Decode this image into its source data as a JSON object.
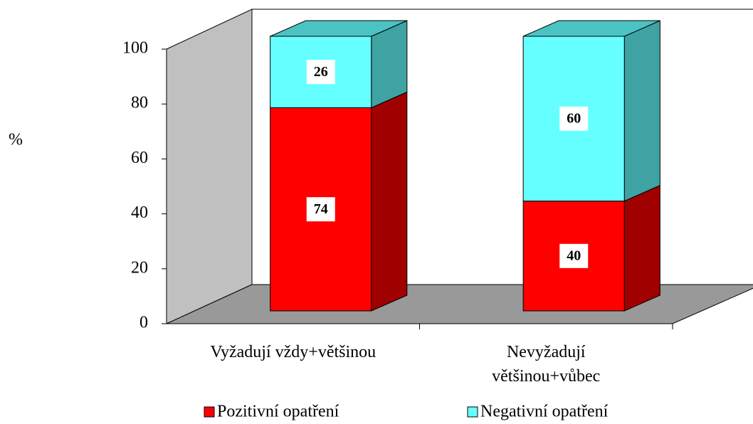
{
  "chart_data": {
    "type": "bar3d_stacked",
    "y_label": "%",
    "categories": [
      "Vyžadují vždy+většinou",
      "Nevyžadují většinou+vůbec"
    ],
    "series": [
      {
        "name": "Pozitivní opatření",
        "color": "#ff0000",
        "side_color": "#a00000",
        "values": [
          74,
          40
        ]
      },
      {
        "name": "Negativní opatření",
        "color": "#66ffff",
        "side_color": "#3fa3a3",
        "values": [
          26,
          60
        ]
      }
    ],
    "ylim": [
      0,
      100
    ],
    "yticks": [
      0,
      20,
      40,
      60,
      80,
      100
    ],
    "legend": "bottom"
  }
}
